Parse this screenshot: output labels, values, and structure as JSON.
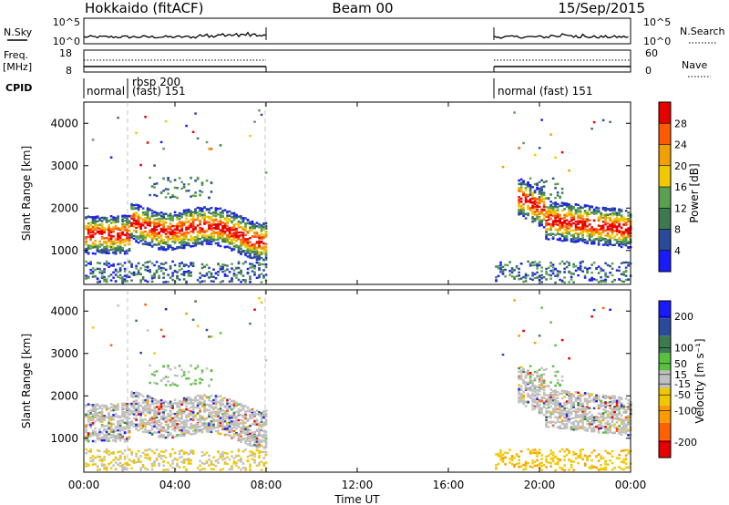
{
  "header": {
    "station": "Hokkaido (fitACF)",
    "beam": "Beam 00",
    "date": "15/Sep/2015"
  },
  "noise_panel": {
    "left_label": "N.Sky",
    "right_label": "N.Search",
    "left_ticks": [
      "10^5",
      "10^0"
    ],
    "right_ticks": [
      "10^5",
      "10^0"
    ]
  },
  "freq_panel": {
    "left_label_1": "Freq.",
    "left_label_2": "[MHz]",
    "left_ticks": [
      "18",
      "8"
    ],
    "right_label": "Nave",
    "right_ticks": [
      "60",
      "0"
    ]
  },
  "cpid_panel": {
    "label": "CPID",
    "modes": [
      {
        "start": "00:00",
        "text": "normal"
      },
      {
        "start": "02:00",
        "text": "rbsp 200"
      },
      {
        "start": "02:00",
        "text": "(fast) 151"
      },
      {
        "start": "18:00",
        "text": "normal (fast) 151"
      }
    ]
  },
  "colors": {
    "power_scale": [
      "#1a1aff",
      "#2a4a9a",
      "#3d7a50",
      "#5aa050",
      "#f0c800",
      "#f0a000",
      "#ff5a00",
      "#e80000"
    ],
    "velocity_scale": [
      "#e80000",
      "#ff6000",
      "#ff9a00",
      "#f0c800",
      "#c0c0c0",
      "#5ac040",
      "#3d7a50",
      "#2a4a9a",
      "#1a1aff"
    ]
  },
  "chart_data": [
    {
      "type": "heatmap",
      "name": "power",
      "ylabel": "Slant Range [km]",
      "yticks": [
        "1000",
        "2000",
        "3000",
        "4000"
      ],
      "ylim": [
        200,
        4500
      ],
      "xlim": [
        "00:00",
        "24:00"
      ],
      "grid": false,
      "colorbar": {
        "label": "Power [dB]",
        "ticks": [
          "4",
          "8",
          "12",
          "16",
          "20",
          "24",
          "28"
        ],
        "range": [
          0,
          32
        ]
      },
      "data_gaps": [
        [
          "08:00",
          "18:00"
        ]
      ]
    },
    {
      "type": "heatmap",
      "name": "velocity",
      "ylabel": "Slant Range [km]",
      "yticks": [
        "1000",
        "2000",
        "3000",
        "4000"
      ],
      "ylim": [
        200,
        4500
      ],
      "xlim": [
        "00:00",
        "24:00"
      ],
      "xlabel": "Time UT",
      "xticks": [
        "00:00",
        "04:00",
        "08:00",
        "12:00",
        "16:00",
        "20:00",
        "00:00"
      ],
      "grid": false,
      "colorbar": {
        "label": "Velocity [m s⁻¹]",
        "ticks": [
          "-200",
          "-100",
          "-50",
          "-15",
          "15",
          "50",
          "100",
          "200"
        ],
        "range": [
          -250,
          250
        ]
      },
      "data_gaps": [
        [
          "08:00",
          "18:00"
        ]
      ]
    }
  ]
}
